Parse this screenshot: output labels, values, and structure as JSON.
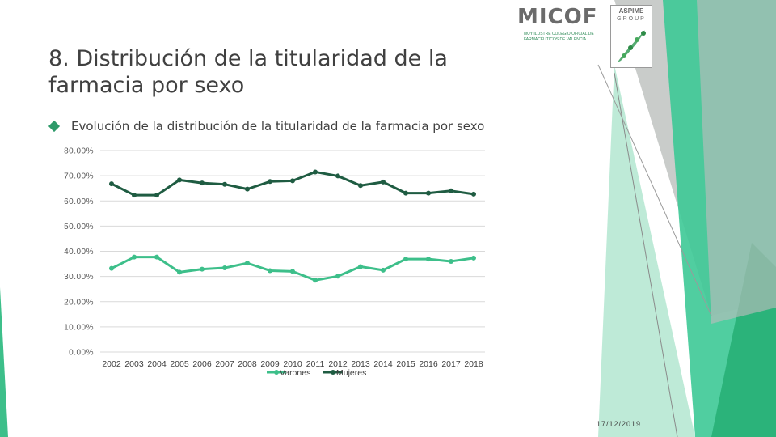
{
  "title": "8. Distribución de la titularidad de la farmacia por sexo",
  "subtitle": "Evolución de la distribución de la titularidad de la farmacia por sexo",
  "date": "17/12/2019",
  "logos": {
    "micof_text": "MICOF",
    "micof_sub": "MUY ILUSTRE COLEGIO OFICIAL DE FARMACÉUTICOS DE VALENCIA",
    "aspime_text": "ASPIME",
    "aspime_sub": "GROUP"
  },
  "colors": {
    "varones": "#3dbf8a",
    "mujeres": "#1f5c42",
    "accent": "#2e9a6a"
  },
  "chart_data": {
    "type": "line",
    "title": "",
    "xlabel": "",
    "ylabel": "",
    "ylim": [
      0,
      80
    ],
    "yticks": [
      "0.00%",
      "10.00%",
      "20.00%",
      "30.00%",
      "40.00%",
      "50.00%",
      "60.00%",
      "70.00%",
      "80.00%"
    ],
    "categories": [
      "2002",
      "2003",
      "2004",
      "2005",
      "2006",
      "2007",
      "2008",
      "2009",
      "2010",
      "2011",
      "2012",
      "2013",
      "2014",
      "2015",
      "2016",
      "2017",
      "2018"
    ],
    "grid": true,
    "legend": "bottom",
    "series": [
      {
        "name": "Varones",
        "values": [
          33.2,
          37.7,
          37.7,
          31.7,
          32.9,
          33.4,
          35.3,
          32.3,
          32.0,
          28.5,
          30.1,
          33.9,
          32.5,
          36.9,
          36.9,
          36.0,
          37.3
        ]
      },
      {
        "name": "Mujeres",
        "values": [
          66.8,
          62.3,
          62.3,
          68.3,
          67.1,
          66.6,
          64.7,
          67.7,
          68.0,
          71.5,
          69.9,
          66.1,
          67.5,
          63.1,
          63.1,
          64.0,
          62.7
        ]
      }
    ]
  }
}
